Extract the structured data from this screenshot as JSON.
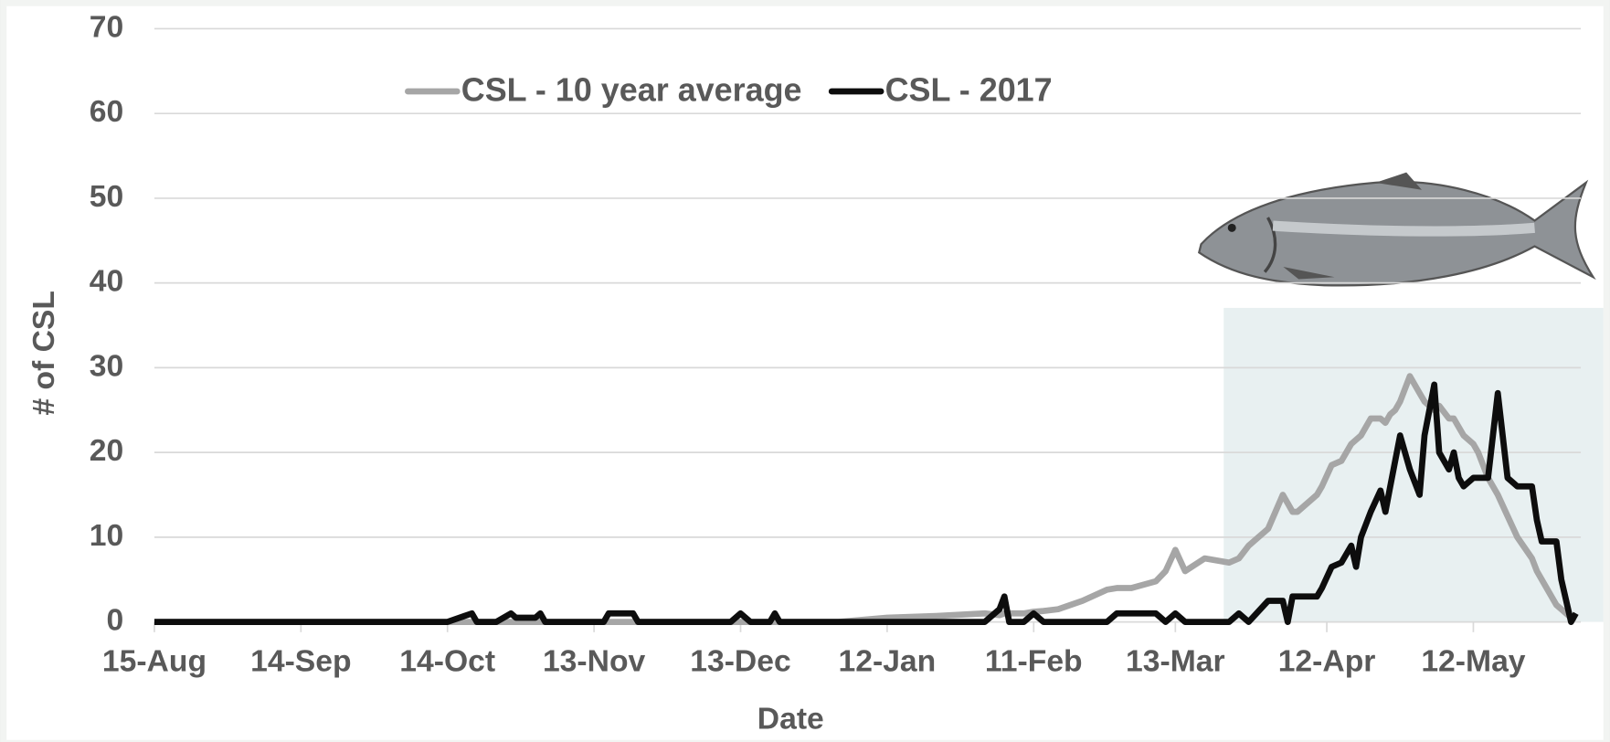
{
  "chart_data": {
    "type": "line",
    "x_label": "Date",
    "y_label": "# of CSL",
    "x": [
      0,
      60,
      65,
      66,
      70,
      73,
      74,
      78,
      79,
      80,
      92,
      93,
      98,
      99,
      118,
      120,
      122,
      126,
      127,
      128,
      140,
      150,
      160,
      170,
      173,
      174,
      175,
      178,
      180,
      182,
      185,
      190,
      195,
      197,
      200,
      205,
      207,
      209,
      211,
      215,
      220,
      222,
      224,
      228,
      231,
      232,
      233,
      234,
      238,
      239,
      241,
      243,
      245,
      246,
      247,
      249,
      251,
      252,
      253,
      254,
      255,
      257,
      259,
      260,
      262,
      263,
      265,
      266,
      267,
      268,
      270,
      271,
      273,
      275,
      277,
      279,
      282,
      283,
      284,
      285,
      287,
      288,
      290,
      291
    ],
    "series": [
      {
        "name": "CSL - 10 year average",
        "color": "#a6a6a6",
        "values": [
          0,
          0,
          0,
          0,
          0,
          0,
          0,
          0,
          0,
          0,
          0,
          0,
          0,
          0,
          0,
          0,
          0,
          0,
          0,
          0,
          0,
          0.5,
          0.7,
          1,
          0.8,
          1,
          1,
          1,
          1.2,
          1.3,
          1.5,
          2.5,
          3.8,
          4,
          4,
          4.8,
          6,
          8.5,
          6,
          7.5,
          7,
          7.5,
          9,
          11,
          15,
          14,
          13,
          13,
          15,
          16,
          18.5,
          19,
          21,
          21.5,
          22,
          24,
          24,
          23.5,
          24.5,
          25,
          26,
          29,
          27,
          26,
          25,
          25.5,
          24,
          24,
          23,
          22,
          21,
          20,
          17,
          15,
          12.5,
          10,
          7.5,
          6,
          5,
          4,
          2,
          1.5,
          0.5,
          0.5
        ]
      },
      {
        "name": "CSL - 2017",
        "color": "#0d0d0d",
        "values": [
          0,
          0,
          1,
          0,
          0,
          1,
          0.5,
          0.5,
          1,
          0,
          0,
          1,
          1,
          0,
          0,
          1,
          0,
          0,
          1,
          0,
          0,
          0,
          0,
          0,
          1.5,
          3,
          0,
          0,
          1,
          0,
          0,
          0,
          0,
          1,
          1,
          1,
          0,
          1,
          0,
          0,
          0,
          1,
          0,
          2.5,
          2.5,
          0,
          3,
          3,
          3,
          4,
          6.5,
          7,
          9,
          6.5,
          10,
          13,
          15.5,
          13,
          16,
          19,
          22,
          18,
          15,
          22,
          28,
          20,
          18,
          20,
          17,
          16,
          17,
          17,
          17,
          27,
          17,
          16,
          16,
          12,
          9.5,
          9.5,
          9.5,
          5,
          0,
          1
        ]
      }
    ],
    "xlim": [
      0,
      292
    ],
    "xticks": [
      {
        "value": 0,
        "label": "15-Aug"
      },
      {
        "value": 30,
        "label": "14-Sep"
      },
      {
        "value": 60,
        "label": "14-Oct"
      },
      {
        "value": 90,
        "label": "13-Nov"
      },
      {
        "value": 120,
        "label": "13-Dec"
      },
      {
        "value": 150,
        "label": "12-Jan"
      },
      {
        "value": 180,
        "label": "11-Feb"
      },
      {
        "value": 209,
        "label": "13-Mar"
      },
      {
        "value": 240,
        "label": "12-Apr"
      },
      {
        "value": 270,
        "label": "12-May"
      }
    ],
    "ylim": [
      0,
      70
    ],
    "yticks": [
      0,
      10,
      20,
      30,
      40,
      50,
      60,
      70
    ],
    "grid": true
  }
}
